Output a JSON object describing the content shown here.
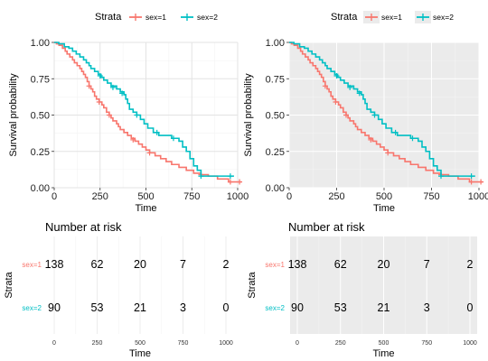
{
  "chart_data": [
    {
      "type": "line",
      "subtype": "kaplan-meier",
      "theme": "minimal",
      "legend": {
        "title": "Strata",
        "placement": "top",
        "entries": [
          "sex=1",
          "sex=2"
        ]
      },
      "xlabel": "Time",
      "ylabel": "Survival probability",
      "xlim": [
        0,
        1000
      ],
      "ylim": [
        0,
        1
      ],
      "xticks": [
        "0",
        "250",
        "500",
        "750",
        "1000"
      ],
      "yticks": [
        "0.00",
        "0.25",
        "0.50",
        "0.75",
        "1.00"
      ],
      "grid": true,
      "series": [
        {
          "name": "sex=1",
          "color": "#F8766D",
          "steps": [
            [
              0,
              1
            ],
            [
              12,
              0.99
            ],
            [
              26,
              0.98
            ],
            [
              45,
              0.96
            ],
            [
              60,
              0.94
            ],
            [
              70,
              0.92
            ],
            [
              85,
              0.9
            ],
            [
              100,
              0.88
            ],
            [
              110,
              0.86
            ],
            [
              125,
              0.84
            ],
            [
              140,
              0.82
            ],
            [
              150,
              0.8
            ],
            [
              160,
              0.78
            ],
            [
              170,
              0.76
            ],
            [
              180,
              0.73
            ],
            [
              190,
              0.7
            ],
            [
              200,
              0.68
            ],
            [
              210,
              0.66
            ],
            [
              220,
              0.63
            ],
            [
              230,
              0.61
            ],
            [
              245,
              0.59
            ],
            [
              260,
              0.57
            ],
            [
              270,
              0.55
            ],
            [
              285,
              0.52
            ],
            [
              300,
              0.5
            ],
            [
              310,
              0.48
            ],
            [
              320,
              0.46
            ],
            [
              340,
              0.44
            ],
            [
              350,
              0.42
            ],
            [
              360,
              0.4
            ],
            [
              380,
              0.38
            ],
            [
              400,
              0.36
            ],
            [
              420,
              0.34
            ],
            [
              440,
              0.32
            ],
            [
              460,
              0.3
            ],
            [
              480,
              0.28
            ],
            [
              500,
              0.26
            ],
            [
              520,
              0.24
            ],
            [
              550,
              0.22
            ],
            [
              580,
              0.2
            ],
            [
              610,
              0.18
            ],
            [
              640,
              0.16
            ],
            [
              680,
              0.14
            ],
            [
              720,
              0.12
            ],
            [
              760,
              0.1
            ],
            [
              800,
              0.09
            ],
            [
              840,
              0.08
            ],
            [
              890,
              0.06
            ],
            [
              950,
              0.04
            ],
            [
              1022,
              0.04
            ]
          ],
          "censor": [
            [
              190,
              0.7
            ],
            [
              245,
              0.59
            ],
            [
              300,
              0.5
            ],
            [
              430,
              0.33
            ],
            [
              520,
              0.24
            ],
            [
              800,
              0.09
            ],
            [
              960,
              0.04
            ],
            [
              1010,
              0.04
            ]
          ]
        },
        {
          "name": "sex=2",
          "color": "#00BFC4",
          "steps": [
            [
              0,
              1
            ],
            [
              25,
              0.99
            ],
            [
              55,
              0.97
            ],
            [
              80,
              0.96
            ],
            [
              100,
              0.94
            ],
            [
              120,
              0.92
            ],
            [
              140,
              0.9
            ],
            [
              160,
              0.88
            ],
            [
              175,
              0.86
            ],
            [
              190,
              0.84
            ],
            [
              200,
              0.82
            ],
            [
              220,
              0.8
            ],
            [
              240,
              0.78
            ],
            [
              255,
              0.76
            ],
            [
              270,
              0.74
            ],
            [
              290,
              0.72
            ],
            [
              310,
              0.7
            ],
            [
              340,
              0.68
            ],
            [
              360,
              0.66
            ],
            [
              380,
              0.64
            ],
            [
              390,
              0.61
            ],
            [
              400,
              0.58
            ],
            [
              410,
              0.54
            ],
            [
              430,
              0.52
            ],
            [
              450,
              0.5
            ],
            [
              470,
              0.47
            ],
            [
              490,
              0.44
            ],
            [
              510,
              0.41
            ],
            [
              540,
              0.38
            ],
            [
              570,
              0.36
            ],
            [
              600,
              0.36
            ],
            [
              640,
              0.34
            ],
            [
              680,
              0.32
            ],
            [
              700,
              0.28
            ],
            [
              720,
              0.25
            ],
            [
              740,
              0.2
            ],
            [
              760,
              0.15
            ],
            [
              780,
              0.12
            ],
            [
              800,
              0.08
            ],
            [
              980,
              0.08
            ]
          ],
          "censor": [
            [
              250,
              0.77
            ],
            [
              320,
              0.69
            ],
            [
              370,
              0.65
            ],
            [
              450,
              0.5
            ],
            [
              560,
              0.38
            ],
            [
              650,
              0.34
            ],
            [
              800,
              0.08
            ],
            [
              960,
              0.08
            ]
          ]
        }
      ]
    },
    {
      "type": "line",
      "subtype": "kaplan-meier",
      "theme": "grey",
      "legend": {
        "title": "Strata",
        "placement": "top",
        "entries": [
          "sex=1",
          "sex=2"
        ]
      },
      "xlabel": "Time",
      "ylabel": "Survival probability",
      "xlim": [
        0,
        1000
      ],
      "ylim": [
        0,
        1
      ],
      "xticks": [
        "0",
        "250",
        "500",
        "750",
        "1000"
      ],
      "yticks": [
        "0.00",
        "0.25",
        "0.50",
        "0.75",
        "1.00"
      ],
      "grid": true,
      "series_same_as_left": true
    },
    {
      "type": "table",
      "title": "Number at risk",
      "theme": "minimal",
      "xlabel": "Time",
      "ylabel": "Strata",
      "xticks": [
        "0",
        "250",
        "500",
        "750",
        "1000"
      ],
      "rows": [
        {
          "label": "sex=1",
          "color": "#F8766D",
          "values": [
            "138",
            "62",
            "20",
            "7",
            "2"
          ]
        },
        {
          "label": "sex=2",
          "color": "#00BFC4",
          "values": [
            "90",
            "53",
            "21",
            "3",
            "0"
          ]
        }
      ]
    },
    {
      "type": "table",
      "title": "Number at risk",
      "theme": "grey",
      "xlabel": "Time",
      "ylabel": "Strata",
      "xticks": [
        "0",
        "250",
        "500",
        "750",
        "1000"
      ],
      "rows": [
        {
          "label": "sex=1",
          "color": "#F8766D",
          "values": [
            "138",
            "62",
            "20",
            "7",
            "2"
          ]
        },
        {
          "label": "sex=2",
          "color": "#00BFC4",
          "values": [
            "90",
            "53",
            "21",
            "3",
            "0"
          ]
        }
      ]
    }
  ]
}
